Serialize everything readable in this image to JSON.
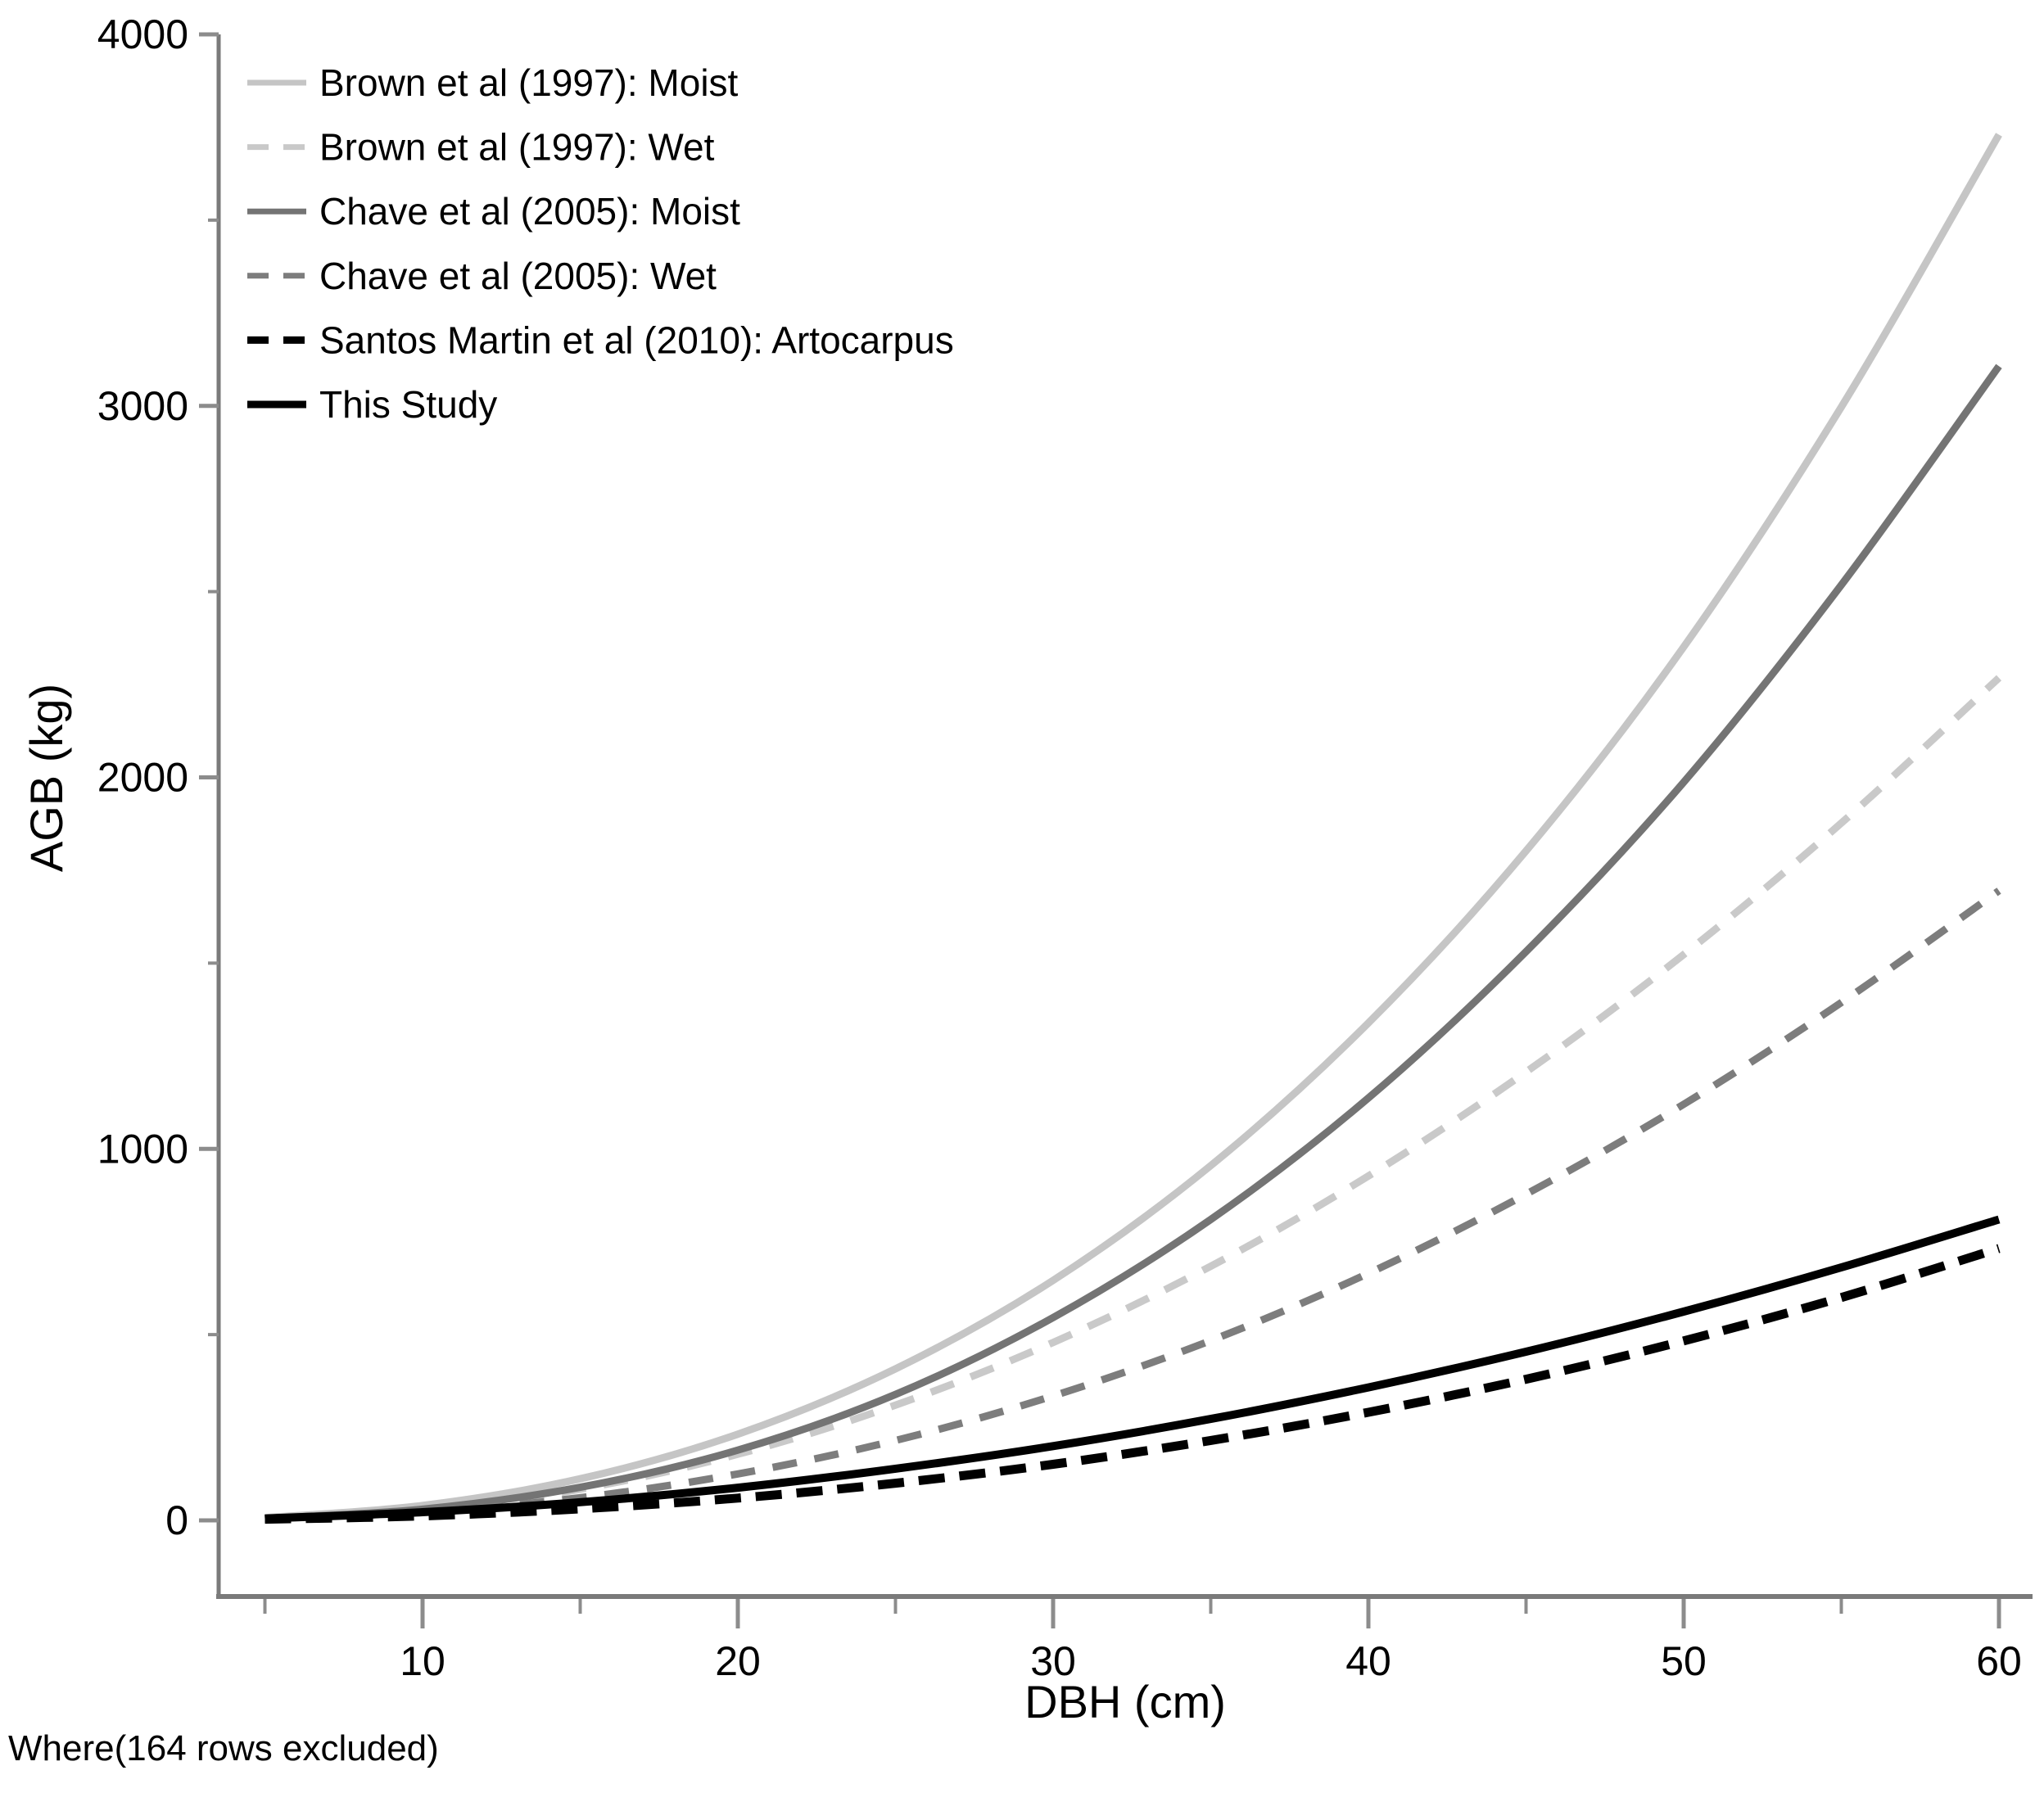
{
  "footnote": "Where(164 rows excluded)",
  "chart_data": {
    "type": "line",
    "title": "",
    "xlabel": "DBH (cm)",
    "ylabel": "AGB (kg)",
    "xlim": [
      3.6,
      61.1
    ],
    "ylim": [
      -205,
      4000
    ],
    "grid": false,
    "legend_position": "top-left",
    "x_major_ticks": [
      10,
      20,
      30,
      40,
      50,
      60
    ],
    "x_minor_ticks": [
      5,
      15,
      25,
      35,
      45,
      55
    ],
    "y_major_ticks": [
      0,
      1000,
      2000,
      3000,
      4000
    ],
    "y_minor_ticks": [
      500,
      1500,
      2500,
      3500
    ],
    "x": [
      5,
      10,
      15,
      20,
      25,
      30,
      35,
      40,
      45,
      50,
      55,
      60
    ],
    "series": [
      {
        "name": "Brown et al (1997): Moist",
        "color": "#c5c5c5",
        "dash": "solid",
        "dasharray": "",
        "width": 9,
        "values": [
          7,
          40,
          112,
          232,
          408,
          646,
          955,
          1339,
          1802,
          2351,
          2997,
          3730
        ]
      },
      {
        "name": "Brown et al (1997): Wet",
        "color": "#c9c9c9",
        "dash": "dashed",
        "dasharray": "30 22",
        "width": 9,
        "values": [
          5,
          26,
          84,
          178,
          310,
          479,
          684,
          927,
          1207,
          1523,
          1877,
          2268
        ]
      },
      {
        "name": "Chave et al (2005): Moist",
        "color": "#747474",
        "dash": "solid",
        "dasharray": "",
        "width": 9,
        "values": [
          5,
          30,
          89,
          189,
          339,
          546,
          810,
          1137,
          1531,
          1987,
          2518,
          3107
        ]
      },
      {
        "name": "Chave et al (2005): Wet",
        "color": "#7d7d7d",
        "dash": "dashed",
        "dasharray": "30 22",
        "width": 9,
        "values": [
          4,
          22,
          61,
          125,
          215,
          335,
          484,
          665,
          878,
          1120,
          1394,
          1695
        ]
      },
      {
        "name": "Santos Martin et al (2010): Artocarpus",
        "color": "#000000",
        "dash": "dashed",
        "dasharray": "32 18",
        "width": 11,
        "values": [
          3,
          12,
          31,
          60,
          100,
          151,
          215,
          291,
          380,
          483,
          600,
          732
        ]
      },
      {
        "name": "This Study",
        "color": "#000000",
        "dash": "solid",
        "dasharray": "",
        "width": 10,
        "values": [
          5,
          22,
          49,
          88,
          139,
          200,
          273,
          358,
          454,
          562,
          681,
          810
        ]
      }
    ]
  }
}
